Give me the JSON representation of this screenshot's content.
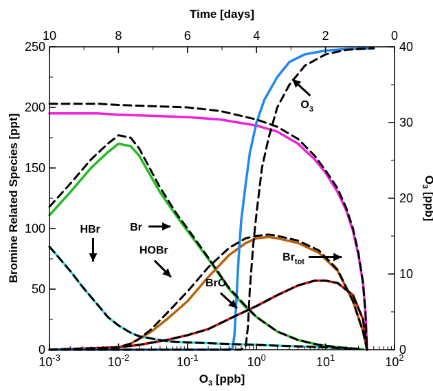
{
  "chart_data": {
    "type": "line",
    "bottom_axis": {
      "label_main": "O",
      "label_sub": "3",
      "label_tail": " [ppb]",
      "scale": "log",
      "range": [
        0.001,
        100
      ],
      "ticks": [
        {
          "value": 0.001,
          "base": "10",
          "exp": "-3"
        },
        {
          "value": 0.01,
          "base": "10",
          "exp": "-2"
        },
        {
          "value": 0.1,
          "base": "10",
          "exp": "-1"
        },
        {
          "value": 1,
          "base": "10",
          "exp": "0"
        },
        {
          "value": 10,
          "base": "10",
          "exp": "1"
        },
        {
          "value": 100,
          "base": "10",
          "exp": "2"
        }
      ]
    },
    "top_axis": {
      "label": "Time [days]",
      "range": [
        10,
        0
      ],
      "ticks": [
        {
          "value": 10,
          "label": "10"
        },
        {
          "value": 8,
          "label": "8"
        },
        {
          "value": 6,
          "label": "6"
        },
        {
          "value": 4,
          "label": "4"
        },
        {
          "value": 2,
          "label": "2"
        },
        {
          "value": 0,
          "label": "0"
        }
      ]
    },
    "left_axis": {
      "label": "Bromine Related Species [ppt]",
      "range": [
        0,
        250
      ],
      "ticks": [
        {
          "value": 0,
          "label": "0"
        },
        {
          "value": 50,
          "label": "50"
        },
        {
          "value": 100,
          "label": "100"
        },
        {
          "value": 150,
          "label": "150"
        },
        {
          "value": 200,
          "label": "200"
        },
        {
          "value": 250,
          "label": "250"
        }
      ]
    },
    "right_axis": {
      "label_main": "O",
      "label_sub": "3",
      "label_tail": " [ppb]",
      "range": [
        0,
        40
      ],
      "ticks": [
        {
          "value": 0,
          "label": "0"
        },
        {
          "value": 10,
          "label": "10"
        },
        {
          "value": 20,
          "label": "20"
        },
        {
          "value": 30,
          "label": "30"
        },
        {
          "value": 40,
          "label": "40"
        }
      ]
    },
    "grid": false,
    "series": [
      {
        "key": "br",
        "color": "#22bb22",
        "style": "solid",
        "x": [
          0.001,
          0.002,
          0.004,
          0.007,
          0.01,
          0.015,
          0.02,
          0.04,
          0.07,
          0.1,
          0.2,
          0.4,
          0.7,
          1,
          2,
          4,
          8,
          15,
          25,
          35
        ],
        "y": [
          111,
          130,
          150,
          163,
          170,
          168,
          160,
          130,
          110,
          98,
          75,
          50,
          35,
          27,
          15,
          8,
          4,
          2,
          1,
          0.5
        ]
      },
      {
        "key": "br_model",
        "color": "#000000",
        "style": "dashed",
        "x": [
          0.001,
          0.002,
          0.004,
          0.007,
          0.01,
          0.015,
          0.02,
          0.04,
          0.07,
          0.1,
          0.2,
          0.4,
          0.7,
          1,
          2,
          4,
          8,
          15,
          25,
          35
        ],
        "y": [
          118,
          137,
          157,
          170,
          177,
          175,
          166,
          134,
          112,
          100,
          76,
          51,
          36,
          27,
          15,
          8,
          4,
          2,
          1,
          0.5
        ]
      },
      {
        "key": "hbr",
        "color": "#33dddd",
        "style": "solid",
        "x": [
          0.001,
          0.002,
          0.003,
          0.005,
          0.007,
          0.01,
          0.015,
          0.02,
          0.05,
          0.1,
          0.3,
          1,
          3,
          10,
          20,
          30
        ],
        "y": [
          85,
          65,
          52,
          37,
          27,
          20,
          14,
          11,
          7,
          6,
          5,
          4,
          3,
          2,
          1,
          0.5
        ]
      },
      {
        "key": "hbr_model",
        "color": "#000000",
        "style": "dashed",
        "x": [
          0.001,
          0.002,
          0.003,
          0.005,
          0.007,
          0.01,
          0.015,
          0.02,
          0.05,
          0.1,
          0.3,
          1,
          3,
          10,
          20,
          30
        ],
        "y": [
          85,
          65,
          52,
          37,
          27,
          20,
          14,
          11,
          7,
          6,
          5,
          4,
          3,
          2,
          1,
          0.5
        ]
      },
      {
        "key": "hobr",
        "color": "#b8620a",
        "style": "solid",
        "x": [
          0.001,
          0.005,
          0.01,
          0.015,
          0.02,
          0.03,
          0.05,
          0.1,
          0.2,
          0.4,
          0.7,
          1,
          1.5,
          2,
          4,
          8,
          15,
          25,
          35,
          40
        ],
        "y": [
          0,
          1,
          2,
          5,
          9,
          15,
          25,
          40,
          60,
          78,
          88,
          92,
          93,
          92,
          88,
          80,
          65,
          40,
          15,
          0
        ]
      },
      {
        "key": "hobr_model",
        "color": "#000000",
        "style": "dashed",
        "x": [
          0.001,
          0.005,
          0.01,
          0.015,
          0.02,
          0.03,
          0.05,
          0.1,
          0.2,
          0.4,
          0.7,
          1,
          1.5,
          2,
          4,
          8,
          15,
          25,
          35,
          40
        ],
        "y": [
          0,
          1,
          2,
          5,
          9,
          17,
          30,
          48,
          68,
          84,
          92,
          94,
          95,
          94,
          90,
          82,
          66,
          40,
          15,
          0
        ]
      },
      {
        "key": "bro",
        "color": "#dd1111",
        "style": "solid",
        "x": [
          0.001,
          0.01,
          0.02,
          0.05,
          0.1,
          0.2,
          0.5,
          1,
          2,
          4,
          7,
          10,
          15,
          25,
          35,
          40
        ],
        "y": [
          0,
          2,
          4,
          8,
          12,
          17,
          28,
          36,
          45,
          53,
          57,
          57,
          55,
          45,
          25,
          0
        ]
      },
      {
        "key": "bro_model",
        "color": "#000000",
        "style": "dashed",
        "x": [
          0.001,
          0.01,
          0.02,
          0.05,
          0.1,
          0.2,
          0.5,
          1,
          2,
          4,
          7,
          10,
          15,
          25,
          35,
          40
        ],
        "y": [
          0,
          2,
          4,
          8,
          12,
          17,
          28,
          36,
          45,
          53,
          57,
          57,
          55,
          45,
          25,
          0
        ]
      },
      {
        "key": "br_tot",
        "color": "#ee22dd",
        "style": "solid",
        "x": [
          0.001,
          0.005,
          0.01,
          0.03,
          0.1,
          0.3,
          1,
          2,
          4,
          7,
          10,
          15,
          20,
          25,
          30,
          35,
          38,
          40
        ],
        "y": [
          195,
          195,
          194,
          193,
          192,
          190,
          185,
          180,
          170,
          157,
          146,
          130,
          115,
          98,
          78,
          55,
          30,
          0
        ]
      },
      {
        "key": "br_tot_model",
        "color": "#000000",
        "style": "dashed",
        "x": [
          0.001,
          0.005,
          0.01,
          0.03,
          0.1,
          0.3,
          1,
          2,
          4,
          7,
          10,
          15,
          20,
          25,
          30,
          35,
          38,
          40
        ],
        "y": [
          203,
          203,
          202,
          201,
          200,
          197,
          190,
          184,
          174,
          160,
          148,
          133,
          117,
          100,
          80,
          55,
          30,
          0
        ]
      },
      {
        "key": "o3",
        "color": "#2288ee",
        "style": "solid",
        "axis": "right",
        "x": [
          0.001,
          0.1,
          0.4,
          0.45,
          0.48,
          0.5,
          0.55,
          0.6,
          0.7,
          0.8,
          1,
          1.3,
          2,
          3,
          5,
          10,
          20,
          50
        ],
        "y": [
          0,
          0,
          0,
          0.2,
          2,
          5,
          12,
          17,
          22,
          26,
          30,
          33,
          36,
          38,
          39,
          39.5,
          39.7,
          39.8
        ]
      },
      {
        "key": "o3_model",
        "color": "#000000",
        "style": "dashed",
        "axis": "right",
        "x": [
          0.001,
          0.2,
          0.6,
          0.7,
          0.75,
          0.8,
          0.9,
          1,
          1.2,
          1.5,
          2,
          3,
          5,
          10,
          20,
          50
        ],
        "y": [
          0,
          0,
          0,
          0.5,
          3,
          8,
          14,
          18,
          24,
          28,
          32,
          35,
          37.5,
          39,
          39.6,
          39.8
        ]
      }
    ],
    "annotations": [
      {
        "key": "br",
        "text": "Br",
        "sub": "",
        "x": 0.015,
        "y": 100
      },
      {
        "key": "hbr",
        "text": "HBr",
        "sub": "",
        "x": 0.004,
        "y": 100
      },
      {
        "key": "hobr",
        "text": "HOBr",
        "sub": "",
        "x": 0.04,
        "y": 77
      },
      {
        "key": "bro",
        "text": "BrO",
        "sub": "",
        "x": 0.5,
        "y": 49
      },
      {
        "key": "br_tot",
        "text": "Br",
        "sub": "tot",
        "x": 2.5,
        "y": 77
      },
      {
        "key": "o3",
        "text": "O",
        "sub": "3",
        "x": 5,
        "y": 37
      }
    ]
  }
}
